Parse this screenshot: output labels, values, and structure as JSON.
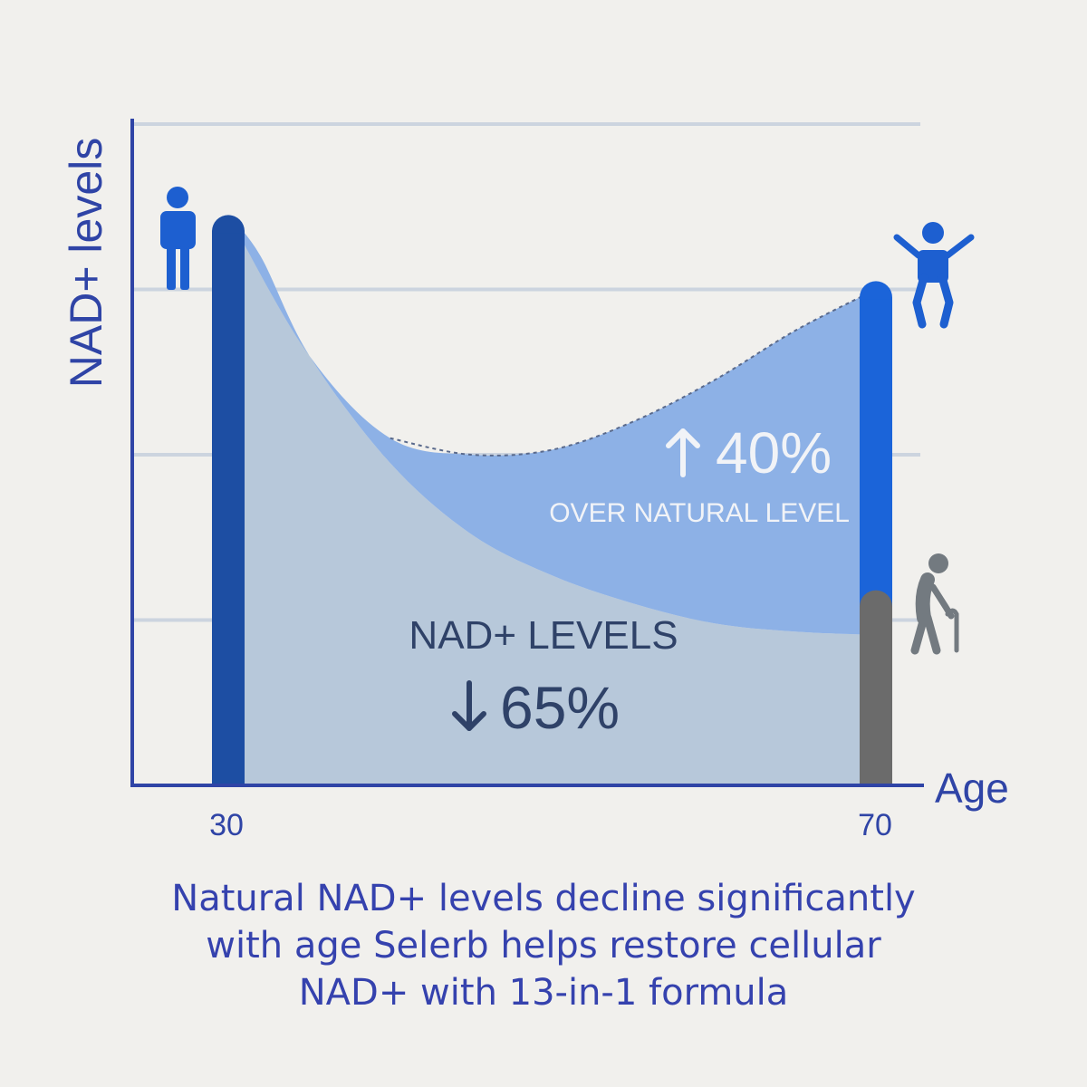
{
  "chart_data": {
    "type": "area",
    "ylabel": "NAD+ levels",
    "xlabel": "Age",
    "x_tick_labels": [
      "30",
      "70"
    ],
    "xlim": [
      30,
      70
    ],
    "ylim": [
      0,
      4
    ],
    "grid": true,
    "gridline_values": [
      1,
      2,
      3,
      4
    ],
    "series": [
      {
        "x": [
          30,
          32,
          35,
          40,
          45,
          50,
          55,
          60,
          65,
          70
        ],
        "values": [
          3.45,
          3.2,
          2.6,
          1.95,
          1.52,
          1.27,
          1.1,
          0.98,
          0.93,
          0.91
        ]
      },
      {
        "x": [
          30,
          35,
          40,
          45,
          50,
          55,
          60,
          65,
          70
        ],
        "values": [
          3.45,
          2.6,
          2.1,
          2.0,
          2.03,
          2.2,
          2.45,
          2.75,
          3.0
        ]
      }
    ],
    "annotations": {
      "decline_label": "NAD+ LEVELS",
      "decline_value": "65%",
      "decline_arrow": "↓",
      "boost_value": "40%",
      "boost_arrow": "↑",
      "boost_label": "OVER NATURAL LEVEL"
    },
    "bars": [
      {
        "x": 30,
        "value": 3.45,
        "color": "#1d4ea3"
      },
      {
        "x": 70,
        "value": 3.05,
        "color": "#1b64d9",
        "natural_value": 1.18,
        "natural_color": "#6b6b6b"
      }
    ],
    "icons": [
      "standing-person-icon",
      "jumping-person-icon",
      "elderly-person-icon"
    ],
    "colors": {
      "axis": "#2f44a6",
      "grid": "#ccd4df",
      "natural_fill": "#b7c8da",
      "boost_fill": "#8db1e6",
      "label_white": "#f1f3f7",
      "label_dark": "#2f4268",
      "icon_blue": "#1d5fd0",
      "icon_grey": "#737a80"
    }
  },
  "caption": {
    "line1": "Natural NAD+ levels decline significantly",
    "line2": "with age Selerb helps restore cellular",
    "line3": "NAD+ with 13-in-1 formula"
  }
}
